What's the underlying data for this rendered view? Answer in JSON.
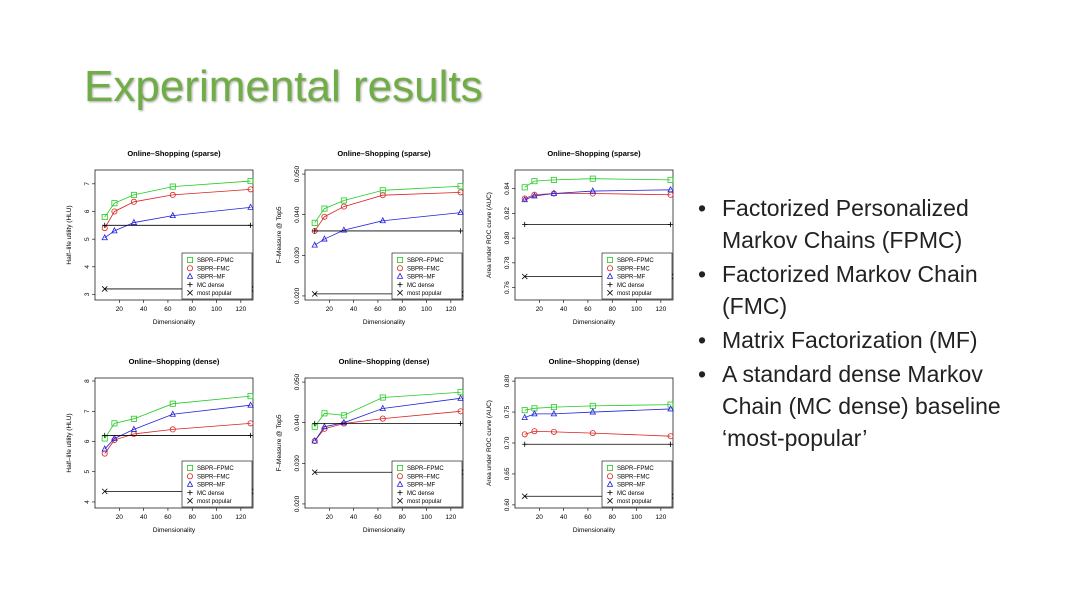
{
  "slide": {
    "title": "Experimental results",
    "bullets": [
      "Factorized Personalized Markov Chains (FPMC)",
      "Factorized Markov Chain (FMC)",
      "Matrix Factorization (MF)",
      "A standard dense Markov Chain (MC dense) baseline ‘most-popular’"
    ]
  },
  "colors": {
    "title": "#70ad47",
    "fpmc": "#22cc22",
    "fmc": "#dd2222",
    "mf": "#2222dd",
    "mc": "#000000",
    "popular": "#000000"
  },
  "legend_labels": [
    "SBPR–FPMC",
    "SBPR–FMC",
    "SBPR–MF",
    "MC dense",
    "most popular"
  ],
  "chart_data": [
    {
      "type": "line",
      "title": "Online–Shopping (sparse)",
      "xlabel": "Dimensionality",
      "ylabel": "Half–life utility (HLU)",
      "x": [
        8,
        16,
        32,
        64,
        128
      ],
      "xlim": [
        0,
        130
      ],
      "ylim": [
        2.8,
        7.5
      ],
      "yticks": [
        3,
        4,
        5,
        6,
        7
      ],
      "ytick_labels": [
        "3",
        "4",
        "5",
        "6",
        "7"
      ],
      "xticks": [
        20,
        40,
        60,
        80,
        100,
        120
      ],
      "series": [
        {
          "name": "SBPR–FPMC",
          "values": [
            5.8,
            6.3,
            6.6,
            6.9,
            7.1
          ]
        },
        {
          "name": "SBPR–FMC",
          "values": [
            5.4,
            6.0,
            6.35,
            6.6,
            6.8
          ]
        },
        {
          "name": "SBPR–MF",
          "values": [
            5.05,
            5.3,
            5.6,
            5.85,
            6.15
          ]
        },
        {
          "name": "MC dense",
          "values": [
            5.5,
            5.5,
            5.5,
            5.5,
            5.5
          ]
        },
        {
          "name": "most popular",
          "values": [
            3.2,
            3.2,
            3.2,
            3.2,
            3.2
          ]
        }
      ],
      "legend": "bottom-right",
      "grid": false
    },
    {
      "type": "line",
      "title": "Online–Shopping (sparse)",
      "xlabel": "Dimensionality",
      "ylabel": "F–Measure @ Top5",
      "x": [
        8,
        16,
        32,
        64,
        128
      ],
      "xlim": [
        0,
        130
      ],
      "ylim": [
        0.019,
        0.051
      ],
      "yticks": [
        0.02,
        0.03,
        0.04,
        0.05
      ],
      "ytick_labels": [
        "0.020",
        "0.030",
        "0.040",
        "0.050"
      ],
      "xticks": [
        20,
        40,
        60,
        80,
        100,
        120
      ],
      "series": [
        {
          "name": "SBPR–FPMC",
          "values": [
            0.038,
            0.0415,
            0.0435,
            0.046,
            0.047
          ]
        },
        {
          "name": "SBPR–FMC",
          "values": [
            0.036,
            0.0395,
            0.042,
            0.0448,
            0.0455
          ]
        },
        {
          "name": "SBPR–MF",
          "values": [
            0.0325,
            0.034,
            0.0362,
            0.0385,
            0.0405
          ]
        },
        {
          "name": "MC dense",
          "values": [
            0.036,
            0.036,
            0.036,
            0.036,
            0.036
          ]
        },
        {
          "name": "most popular",
          "values": [
            0.0205,
            0.0205,
            0.0205,
            0.0205,
            0.0205
          ]
        }
      ],
      "legend": "bottom-right",
      "grid": false
    },
    {
      "type": "line",
      "title": "Online–Shopping (sparse)",
      "xlabel": "Dimensionality",
      "ylabel": "Area under ROC curve (AUC)",
      "x": [
        8,
        16,
        32,
        64,
        128
      ],
      "xlim": [
        0,
        130
      ],
      "ylim": [
        0.75,
        0.855
      ],
      "yticks": [
        0.76,
        0.78,
        0.8,
        0.82,
        0.84
      ],
      "ytick_labels": [
        "0.76",
        "0.78",
        "0.80",
        "0.82",
        "0.84"
      ],
      "xticks": [
        20,
        40,
        60,
        80,
        100,
        120
      ],
      "series": [
        {
          "name": "SBPR–FPMC",
          "values": [
            0.841,
            0.846,
            0.847,
            0.848,
            0.847
          ]
        },
        {
          "name": "SBPR–FMC",
          "values": [
            0.832,
            0.835,
            0.836,
            0.836,
            0.835
          ]
        },
        {
          "name": "SBPR–MF",
          "values": [
            0.831,
            0.834,
            0.836,
            0.838,
            0.839
          ]
        },
        {
          "name": "MC dense",
          "values": [
            0.811,
            0.811,
            0.811,
            0.811,
            0.811
          ]
        },
        {
          "name": "most popular",
          "values": [
            0.769,
            0.769,
            0.769,
            0.769,
            0.769
          ]
        }
      ],
      "legend": "bottom-right",
      "grid": false
    },
    {
      "type": "line",
      "title": "Online–Shopping (dense)",
      "xlabel": "Dimensionality",
      "ylabel": "Half–life utility (HLU)",
      "x": [
        8,
        16,
        32,
        64,
        128
      ],
      "xlim": [
        0,
        130
      ],
      "ylim": [
        3.8,
        8.1
      ],
      "yticks": [
        4,
        5,
        6,
        7,
        8
      ],
      "ytick_labels": [
        "4",
        "5",
        "6",
        "7",
        "8"
      ],
      "xticks": [
        20,
        40,
        60,
        80,
        100,
        120
      ],
      "series": [
        {
          "name": "SBPR–FPMC",
          "values": [
            6.1,
            6.6,
            6.75,
            7.25,
            7.5
          ]
        },
        {
          "name": "SBPR–FMC",
          "values": [
            5.6,
            6.05,
            6.25,
            6.4,
            6.6
          ]
        },
        {
          "name": "SBPR–MF",
          "values": [
            5.75,
            6.1,
            6.4,
            6.9,
            7.2
          ]
        },
        {
          "name": "MC dense",
          "values": [
            6.2,
            6.2,
            6.2,
            6.2,
            6.2
          ]
        },
        {
          "name": "most popular",
          "values": [
            4.35,
            4.35,
            4.35,
            4.35,
            4.35
          ]
        }
      ],
      "legend": "bottom-right",
      "grid": false
    },
    {
      "type": "line",
      "title": "Online–Shopping (dense)",
      "xlabel": "Dimensionality",
      "ylabel": "F–Measure @ Top5",
      "x": [
        8,
        16,
        32,
        64,
        128
      ],
      "xlim": [
        0,
        130
      ],
      "ylim": [
        0.019,
        0.051
      ],
      "yticks": [
        0.02,
        0.03,
        0.04,
        0.05
      ],
      "ytick_labels": [
        "0.020",
        "0.030",
        "0.040",
        "0.050"
      ],
      "xticks": [
        20,
        40,
        60,
        80,
        100,
        120
      ],
      "series": [
        {
          "name": "SBPR–FPMC",
          "values": [
            0.039,
            0.0423,
            0.0418,
            0.0462,
            0.0475
          ]
        },
        {
          "name": "SBPR–FMC",
          "values": [
            0.0355,
            0.0385,
            0.0398,
            0.041,
            0.0428
          ]
        },
        {
          "name": "SBPR–MF",
          "values": [
            0.0355,
            0.039,
            0.04,
            0.0435,
            0.046
          ]
        },
        {
          "name": "MC dense",
          "values": [
            0.0398,
            0.0398,
            0.0398,
            0.0398,
            0.0398
          ]
        },
        {
          "name": "most popular",
          "values": [
            0.0278,
            0.0278,
            0.0278,
            0.0278,
            0.0278
          ]
        }
      ],
      "legend": "bottom-right",
      "grid": false
    },
    {
      "type": "line",
      "title": "Online–Shopping (dense)",
      "xlabel": "Dimensionality",
      "ylabel": "Area under ROC curve (AUC)",
      "x": [
        8,
        16,
        32,
        64,
        128
      ],
      "xlim": [
        0,
        130
      ],
      "ylim": [
        0.595,
        0.805
      ],
      "yticks": [
        0.6,
        0.65,
        0.7,
        0.75,
        0.8
      ],
      "ytick_labels": [
        "0.60",
        "0.65",
        "0.70",
        "0.75",
        "0.80"
      ],
      "xticks": [
        20,
        40,
        60,
        80,
        100,
        120
      ],
      "series": [
        {
          "name": "SBPR–FPMC",
          "values": [
            0.753,
            0.756,
            0.758,
            0.76,
            0.762
          ]
        },
        {
          "name": "SBPR–FMC",
          "values": [
            0.714,
            0.719,
            0.718,
            0.716,
            0.711
          ]
        },
        {
          "name": "SBPR–MF",
          "values": [
            0.741,
            0.747,
            0.747,
            0.75,
            0.755
          ]
        },
        {
          "name": "MC dense",
          "values": [
            0.698,
            0.698,
            0.698,
            0.698,
            0.698
          ]
        },
        {
          "name": "most popular",
          "values": [
            0.614,
            0.614,
            0.614,
            0.614,
            0.614
          ]
        }
      ],
      "legend": "bottom-right",
      "grid": false
    }
  ]
}
